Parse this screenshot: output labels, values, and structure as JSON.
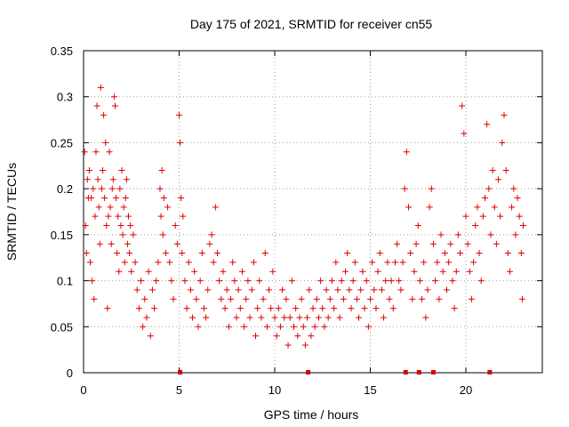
{
  "chart_data": {
    "type": "scatter",
    "title": "Day 175 of 2021, SRMTID for receiver cn55",
    "xlabel": "GPS time / hours",
    "ylabel": "SRMTID / TECUs",
    "xlim": [
      0,
      24
    ],
    "ylim": [
      0,
      0.35
    ],
    "x_ticks": [
      0,
      5,
      10,
      15,
      20
    ],
    "x_tick_labels": [
      "0",
      "5",
      "10",
      "15",
      "20"
    ],
    "y_ticks": [
      0,
      0.05,
      0.1,
      0.15,
      0.2,
      0.25,
      0.3,
      0.35
    ],
    "y_tick_labels": [
      "0",
      "0.05",
      "0.1",
      "0.15",
      "0.2",
      "0.25",
      "0.3",
      "0.35"
    ],
    "grid": true,
    "marker": "plus",
    "color": "#e00000",
    "series": [
      {
        "name": "SRMTID",
        "points": [
          [
            0.05,
            0.24
          ],
          [
            0.1,
            0.16
          ],
          [
            0.15,
            0.13
          ],
          [
            0.2,
            0.21
          ],
          [
            0.25,
            0.19
          ],
          [
            0.3,
            0.22
          ],
          [
            0.35,
            0.12
          ],
          [
            0.4,
            0.19
          ],
          [
            0.45,
            0.1
          ],
          [
            0.5,
            0.2
          ],
          [
            0.55,
            0.08
          ],
          [
            0.6,
            0.17
          ],
          [
            0.65,
            0.24
          ],
          [
            0.7,
            0.29
          ],
          [
            0.75,
            0.21
          ],
          [
            0.8,
            0.18
          ],
          [
            0.85,
            0.14
          ],
          [
            0.9,
            0.31
          ],
          [
            0.95,
            0.2
          ],
          [
            1.0,
            0.22
          ],
          [
            1.05,
            0.28
          ],
          [
            1.1,
            0.19
          ],
          [
            1.15,
            0.25
          ],
          [
            1.2,
            0.16
          ],
          [
            1.25,
            0.07
          ],
          [
            1.3,
            0.17
          ],
          [
            1.35,
            0.24
          ],
          [
            1.4,
            0.18
          ],
          [
            1.45,
            0.14
          ],
          [
            1.5,
            0.2
          ],
          [
            1.55,
            0.21
          ],
          [
            1.6,
            0.3
          ],
          [
            1.65,
            0.29
          ],
          [
            1.7,
            0.19
          ],
          [
            1.75,
            0.13
          ],
          [
            1.8,
            0.17
          ],
          [
            1.85,
            0.11
          ],
          [
            1.9,
            0.2
          ],
          [
            1.95,
            0.16
          ],
          [
            2.0,
            0.22
          ],
          [
            2.05,
            0.15
          ],
          [
            2.1,
            0.18
          ],
          [
            2.15,
            0.12
          ],
          [
            2.2,
            0.19
          ],
          [
            2.25,
            0.21
          ],
          [
            2.3,
            0.14
          ],
          [
            2.35,
            0.17
          ],
          [
            2.4,
            0.13
          ],
          [
            2.45,
            0.16
          ],
          [
            2.5,
            0.11
          ],
          [
            2.6,
            0.15
          ],
          [
            2.7,
            0.12
          ],
          [
            2.8,
            0.09
          ],
          [
            2.9,
            0.07
          ],
          [
            3.0,
            0.1
          ],
          [
            3.1,
            0.05
          ],
          [
            3.2,
            0.08
          ],
          [
            3.3,
            0.06
          ],
          [
            3.4,
            0.11
          ],
          [
            3.5,
            0.04
          ],
          [
            3.6,
            0.09
          ],
          [
            3.7,
            0.07
          ],
          [
            3.8,
            0.1
          ],
          [
            3.9,
            0.12
          ],
          [
            4.0,
            0.2
          ],
          [
            4.05,
            0.17
          ],
          [
            4.1,
            0.22
          ],
          [
            4.15,
            0.15
          ],
          [
            4.2,
            0.19
          ],
          [
            4.3,
            0.13
          ],
          [
            4.4,
            0.18
          ],
          [
            4.5,
            0.12
          ],
          [
            4.6,
            0.1
          ],
          [
            4.7,
            0.08
          ],
          [
            4.8,
            0.16
          ],
          [
            4.9,
            0.14
          ],
          [
            5.0,
            0.28
          ],
          [
            5.05,
            0.25
          ],
          [
            5.1,
            0.19
          ],
          [
            5.15,
            0.13
          ],
          [
            5.2,
            0.17
          ],
          [
            5.3,
            0.1
          ],
          [
            5.4,
            0.07
          ],
          [
            5.5,
            0.12
          ],
          [
            5.6,
            0.09
          ],
          [
            5.7,
            0.06
          ],
          [
            5.8,
            0.11
          ],
          [
            5.9,
            0.08
          ],
          [
            6.0,
            0.05
          ],
          [
            6.1,
            0.1
          ],
          [
            6.2,
            0.13
          ],
          [
            6.3,
            0.07
          ],
          [
            6.4,
            0.06
          ],
          [
            6.5,
            0.09
          ],
          [
            6.6,
            0.14
          ],
          [
            6.7,
            0.15
          ],
          [
            6.8,
            0.12
          ],
          [
            6.9,
            0.18
          ],
          [
            7.0,
            0.13
          ],
          [
            7.1,
            0.1
          ],
          [
            7.2,
            0.08
          ],
          [
            7.3,
            0.11
          ],
          [
            7.4,
            0.07
          ],
          [
            7.5,
            0.09
          ],
          [
            7.6,
            0.05
          ],
          [
            7.7,
            0.08
          ],
          [
            7.8,
            0.12
          ],
          [
            7.9,
            0.1
          ],
          [
            8.0,
            0.06
          ],
          [
            8.1,
            0.09
          ],
          [
            8.2,
            0.07
          ],
          [
            8.3,
            0.11
          ],
          [
            8.4,
            0.05
          ],
          [
            8.5,
            0.08
          ],
          [
            8.6,
            0.1
          ],
          [
            8.7,
            0.06
          ],
          [
            8.8,
            0.09
          ],
          [
            8.9,
            0.12
          ],
          [
            9.0,
            0.04
          ],
          [
            9.1,
            0.07
          ],
          [
            9.2,
            0.1
          ],
          [
            9.3,
            0.06
          ],
          [
            9.4,
            0.08
          ],
          [
            9.5,
            0.13
          ],
          [
            9.6,
            0.05
          ],
          [
            9.7,
            0.09
          ],
          [
            9.8,
            0.07
          ],
          [
            9.9,
            0.11
          ],
          [
            10.0,
            0.06
          ],
          [
            10.1,
            0.04
          ],
          [
            10.2,
            0.07
          ],
          [
            10.3,
            0.05
          ],
          [
            10.4,
            0.09
          ],
          [
            10.5,
            0.06
          ],
          [
            10.6,
            0.08
          ],
          [
            10.7,
            0.03
          ],
          [
            10.8,
            0.06
          ],
          [
            10.9,
            0.1
          ],
          [
            11.0,
            0.05
          ],
          [
            11.1,
            0.07
          ],
          [
            11.2,
            0.04
          ],
          [
            11.3,
            0.06
          ],
          [
            11.4,
            0.08
          ],
          [
            11.5,
            0.05
          ],
          [
            11.6,
            0.03
          ],
          [
            11.7,
            0.06
          ],
          [
            11.8,
            0.09
          ],
          [
            11.9,
            0.04
          ],
          [
            12.0,
            0.07
          ],
          [
            12.1,
            0.05
          ],
          [
            12.2,
            0.08
          ],
          [
            12.3,
            0.06
          ],
          [
            12.4,
            0.1
          ],
          [
            12.5,
            0.07
          ],
          [
            12.6,
            0.05
          ],
          [
            12.7,
            0.09
          ],
          [
            12.8,
            0.06
          ],
          [
            12.9,
            0.08
          ],
          [
            13.0,
            0.1
          ],
          [
            13.1,
            0.07
          ],
          [
            13.2,
            0.12
          ],
          [
            13.3,
            0.09
          ],
          [
            13.4,
            0.06
          ],
          [
            13.5,
            0.1
          ],
          [
            13.6,
            0.08
          ],
          [
            13.7,
            0.11
          ],
          [
            13.8,
            0.13
          ],
          [
            13.9,
            0.09
          ],
          [
            14.0,
            0.07
          ],
          [
            14.1,
            0.1
          ],
          [
            14.2,
            0.12
          ],
          [
            14.3,
            0.08
          ],
          [
            14.4,
            0.06
          ],
          [
            14.5,
            0.09
          ],
          [
            14.6,
            0.11
          ],
          [
            14.7,
            0.07
          ],
          [
            14.8,
            0.1
          ],
          [
            14.9,
            0.05
          ],
          [
            15.0,
            0.08
          ],
          [
            15.1,
            0.12
          ],
          [
            15.2,
            0.09
          ],
          [
            15.3,
            0.07
          ],
          [
            15.4,
            0.11
          ],
          [
            15.5,
            0.13
          ],
          [
            15.6,
            0.09
          ],
          [
            15.7,
            0.06
          ],
          [
            15.8,
            0.1
          ],
          [
            15.9,
            0.12
          ],
          [
            16.0,
            0.08
          ],
          [
            16.1,
            0.1
          ],
          [
            16.2,
            0.07
          ],
          [
            16.3,
            0.12
          ],
          [
            16.4,
            0.14
          ],
          [
            16.5,
            0.1
          ],
          [
            16.6,
            0.09
          ],
          [
            16.7,
            0.12
          ],
          [
            16.8,
            0.2
          ],
          [
            16.9,
            0.24
          ],
          [
            17.0,
            0.18
          ],
          [
            17.1,
            0.13
          ],
          [
            17.2,
            0.08
          ],
          [
            17.3,
            0.11
          ],
          [
            17.4,
            0.14
          ],
          [
            17.5,
            0.16
          ],
          [
            17.6,
            0.1
          ],
          [
            17.7,
            0.08
          ],
          [
            17.8,
            0.12
          ],
          [
            17.9,
            0.06
          ],
          [
            18.0,
            0.09
          ],
          [
            18.1,
            0.18
          ],
          [
            18.2,
            0.2
          ],
          [
            18.3,
            0.14
          ],
          [
            18.4,
            0.1
          ],
          [
            18.5,
            0.12
          ],
          [
            18.6,
            0.08
          ],
          [
            18.7,
            0.15
          ],
          [
            18.8,
            0.11
          ],
          [
            18.9,
            0.13
          ],
          [
            19.0,
            0.09
          ],
          [
            19.1,
            0.12
          ],
          [
            19.2,
            0.14
          ],
          [
            19.3,
            0.1
          ],
          [
            19.4,
            0.07
          ],
          [
            19.5,
            0.11
          ],
          [
            19.6,
            0.15
          ],
          [
            19.7,
            0.13
          ],
          [
            19.8,
            0.29
          ],
          [
            19.9,
            0.26
          ],
          [
            20.0,
            0.17
          ],
          [
            20.1,
            0.14
          ],
          [
            20.2,
            0.11
          ],
          [
            20.3,
            0.08
          ],
          [
            20.4,
            0.12
          ],
          [
            20.5,
            0.16
          ],
          [
            20.6,
            0.18
          ],
          [
            20.7,
            0.13
          ],
          [
            20.8,
            0.1
          ],
          [
            20.9,
            0.17
          ],
          [
            21.0,
            0.19
          ],
          [
            21.1,
            0.27
          ],
          [
            21.2,
            0.2
          ],
          [
            21.3,
            0.15
          ],
          [
            21.4,
            0.22
          ],
          [
            21.5,
            0.18
          ],
          [
            21.6,
            0.14
          ],
          [
            21.7,
            0.21
          ],
          [
            21.8,
            0.17
          ],
          [
            21.9,
            0.25
          ],
          [
            22.0,
            0.28
          ],
          [
            22.1,
            0.22
          ],
          [
            22.2,
            0.13
          ],
          [
            22.3,
            0.11
          ],
          [
            22.4,
            0.18
          ],
          [
            22.5,
            0.2
          ],
          [
            22.6,
            0.15
          ],
          [
            22.7,
            0.19
          ],
          [
            22.8,
            0.17
          ],
          [
            22.9,
            0.13
          ],
          [
            22.95,
            0.08
          ],
          [
            23.0,
            0.16
          ]
        ]
      }
    ],
    "ground_markers_x": [
      5.05,
      11.75,
      16.85,
      17.55,
      18.3,
      21.25
    ]
  }
}
